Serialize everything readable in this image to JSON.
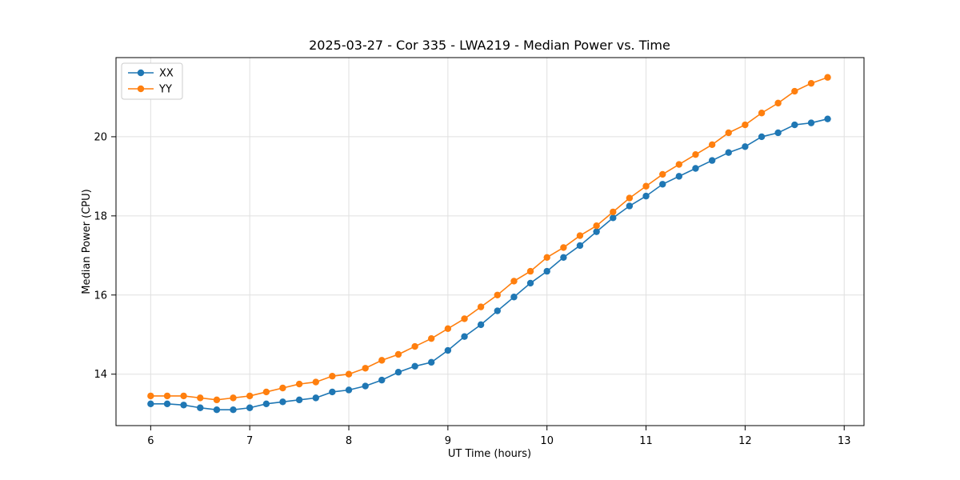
{
  "chart_data": {
    "type": "line",
    "title": "2025-03-27 - Cor 335 - LWA219 - Median Power vs. Time",
    "xlabel": "UT Time (hours)",
    "ylabel": "Median Power (CPU)",
    "xlim": [
      5.65,
      13.2
    ],
    "ylim": [
      12.7,
      22.0
    ],
    "xticks": [
      6,
      7,
      8,
      9,
      10,
      11,
      12,
      13
    ],
    "yticks": [
      14,
      16,
      18,
      20
    ],
    "grid": true,
    "legend_position": "upper-left",
    "x": [
      6.0,
      6.167,
      6.333,
      6.5,
      6.667,
      6.833,
      7.0,
      7.167,
      7.333,
      7.5,
      7.667,
      7.833,
      8.0,
      8.167,
      8.333,
      8.5,
      8.667,
      8.833,
      9.0,
      9.167,
      9.333,
      9.5,
      9.667,
      9.833,
      10.0,
      10.167,
      10.333,
      10.5,
      10.667,
      10.833,
      11.0,
      11.167,
      11.333,
      11.5,
      11.667,
      11.833,
      12.0,
      12.167,
      12.333,
      12.5,
      12.667,
      12.833
    ],
    "series": [
      {
        "name": "XX",
        "color": "#1f77b4",
        "values": [
          13.25,
          13.25,
          13.22,
          13.15,
          13.1,
          13.1,
          13.15,
          13.25,
          13.3,
          13.35,
          13.4,
          13.55,
          13.6,
          13.7,
          13.85,
          14.05,
          14.2,
          14.3,
          14.6,
          14.95,
          15.25,
          15.6,
          15.95,
          16.3,
          16.6,
          16.95,
          17.25,
          17.6,
          17.95,
          18.25,
          18.5,
          18.8,
          19.0,
          19.2,
          19.4,
          19.6,
          19.75,
          20.0,
          20.1,
          20.3,
          20.35,
          20.45
        ]
      },
      {
        "name": "YY",
        "color": "#ff7f0e",
        "values": [
          13.45,
          13.45,
          13.45,
          13.4,
          13.35,
          13.4,
          13.45,
          13.55,
          13.65,
          13.75,
          13.8,
          13.95,
          14.0,
          14.15,
          14.35,
          14.5,
          14.7,
          14.9,
          15.15,
          15.4,
          15.7,
          16.0,
          16.35,
          16.6,
          16.95,
          17.2,
          17.5,
          17.75,
          18.1,
          18.45,
          18.75,
          19.05,
          19.3,
          19.55,
          19.8,
          20.1,
          20.3,
          20.6,
          20.85,
          21.15,
          21.35,
          21.5
        ]
      }
    ]
  }
}
